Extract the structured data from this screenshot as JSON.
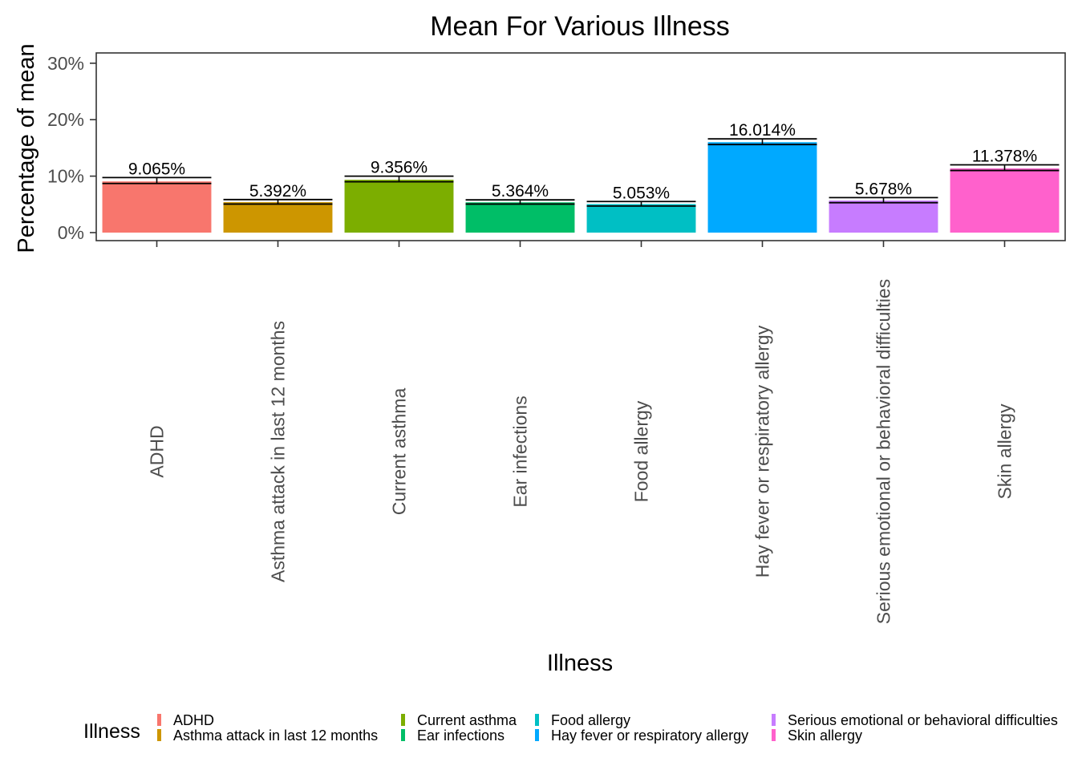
{
  "chart_data": {
    "type": "bar",
    "title": "Mean For Various Illness",
    "xlabel": "Illness",
    "ylabel": "Percentage of mean",
    "ylim": [
      0,
      32
    ],
    "y_ticks": [
      0,
      10,
      20,
      30
    ],
    "y_tick_labels": [
      "0%",
      "10%",
      "20%",
      "30%"
    ],
    "categories": [
      "ADHD",
      "Asthma attack in last 12 months",
      "Current asthma",
      "Ear infections",
      "Food allergy",
      "Hay fever or respiratory allergy",
      "Serious emotional or behavioral difficulties",
      "Skin allergy"
    ],
    "values": [
      9.065,
      5.392,
      9.356,
      5.364,
      5.053,
      16.014,
      5.678,
      11.378
    ],
    "labels": [
      "9.065%",
      "5.392%",
      "9.356%",
      "5.364%",
      "5.053%",
      "16.014%",
      "5.678%",
      "11.378%"
    ],
    "error_low": [
      8.7,
      5.05,
      9.0,
      5.05,
      4.7,
      15.6,
      5.3,
      11.0
    ],
    "error_high": [
      9.75,
      5.85,
      10.0,
      5.8,
      5.5,
      16.6,
      6.2,
      12.0
    ],
    "colors": [
      "#F8766D",
      "#CD9600",
      "#7CAE00",
      "#00BE67",
      "#00BFC4",
      "#00A9FF",
      "#C77CFF",
      "#FF61CC"
    ],
    "grid": false,
    "legend": {
      "title": "Illness",
      "position": "bottom",
      "columns": [
        [
          "ADHD",
          "Asthma attack in last 12 months"
        ],
        [
          "Current asthma",
          "Ear infections"
        ],
        [
          "Food allergy",
          "Hay fever or respiratory allergy"
        ],
        [
          "Serious emotional or behavioral difficulties",
          "Skin allergy"
        ]
      ]
    }
  }
}
